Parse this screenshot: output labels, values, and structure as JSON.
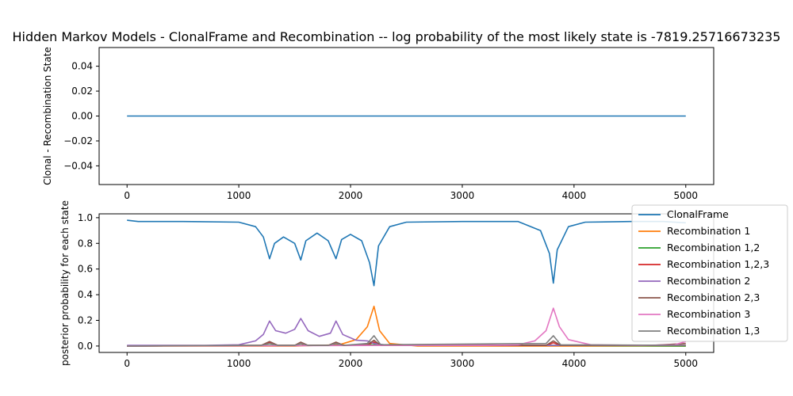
{
  "title": "Hidden Markov Models - ClonalFrame and Recombination -- log probability of the most likely state is  -7819.25716673235",
  "chart_data": [
    {
      "type": "line",
      "ylabel": "Clonal - Recombination State",
      "xlim": [
        -250,
        5250
      ],
      "ylim": [
        -0.055,
        0.055
      ],
      "xticks": [
        0,
        1000,
        2000,
        3000,
        4000,
        5000
      ],
      "yticks": [
        -0.04,
        -0.02,
        0.0,
        0.02,
        0.04
      ],
      "ytick_labels": [
        "−0.04",
        "−0.02",
        "0.00",
        "0.02",
        "0.04"
      ],
      "series": [
        {
          "color": "#1f77b4",
          "x": [
            0,
            5000
          ],
          "y": [
            0,
            0
          ]
        }
      ]
    },
    {
      "type": "line",
      "ylabel": "posterior probability for each state",
      "xlim": [
        -250,
        5250
      ],
      "ylim": [
        -0.05,
        1.03
      ],
      "xticks": [
        0,
        1000,
        2000,
        3000,
        4000,
        5000
      ],
      "yticks": [
        0.0,
        0.2,
        0.4,
        0.6,
        0.8,
        1.0
      ],
      "ytick_labels": [
        "0.0",
        "0.2",
        "0.4",
        "0.6",
        "0.8",
        "1.0"
      ],
      "legend_position": "right",
      "series": [
        {
          "name": "ClonalFrame",
          "color": "#1f77b4",
          "x": [
            0,
            100,
            500,
            1000,
            1150,
            1220,
            1275,
            1320,
            1400,
            1500,
            1555,
            1600,
            1700,
            1800,
            1870,
            1920,
            2000,
            2100,
            2170,
            2210,
            2250,
            2350,
            2500,
            3000,
            3500,
            3700,
            3780,
            3815,
            3850,
            3950,
            4100,
            4500,
            4800,
            5000
          ],
          "y": [
            0.98,
            0.97,
            0.97,
            0.965,
            0.93,
            0.85,
            0.68,
            0.8,
            0.85,
            0.8,
            0.67,
            0.82,
            0.88,
            0.82,
            0.68,
            0.83,
            0.87,
            0.82,
            0.65,
            0.47,
            0.78,
            0.93,
            0.965,
            0.97,
            0.97,
            0.9,
            0.72,
            0.49,
            0.75,
            0.93,
            0.965,
            0.97,
            0.97,
            0.96
          ]
        },
        {
          "name": "Recombination 1",
          "color": "#ff7f0e",
          "x": [
            0,
            1500,
            1900,
            2050,
            2150,
            2210,
            2260,
            2350,
            2600,
            5000
          ],
          "y": [
            0.0,
            0.0,
            0.01,
            0.05,
            0.15,
            0.31,
            0.12,
            0.02,
            0.0,
            0.0
          ]
        },
        {
          "name": "Recombination 1,2",
          "color": "#2ca02c",
          "x": [
            0,
            1275,
            1555,
            1870,
            2210,
            3815,
            5000
          ],
          "y": [
            0.0,
            0.005,
            0.005,
            0.005,
            0.01,
            0.005,
            0.0
          ]
        },
        {
          "name": "Recombination 1,2,3",
          "color": "#d62728",
          "x": [
            0,
            1200,
            1275,
            1350,
            1500,
            1555,
            1600,
            1800,
            1870,
            1950,
            2150,
            2210,
            2270,
            3750,
            3815,
            3880,
            5000
          ],
          "y": [
            0.0,
            0.005,
            0.025,
            0.005,
            0.005,
            0.02,
            0.005,
            0.005,
            0.02,
            0.005,
            0.01,
            0.03,
            0.005,
            0.005,
            0.025,
            0.005,
            0.005
          ]
        },
        {
          "name": "Recombination 2",
          "color": "#9467bd",
          "x": [
            0,
            700,
            1000,
            1150,
            1220,
            1275,
            1330,
            1420,
            1500,
            1555,
            1620,
            1720,
            1820,
            1870,
            1930,
            2050,
            2150,
            2210,
            2300,
            2500,
            3000,
            5000
          ],
          "y": [
            0.005,
            0.005,
            0.01,
            0.04,
            0.09,
            0.195,
            0.12,
            0.1,
            0.13,
            0.215,
            0.12,
            0.075,
            0.1,
            0.195,
            0.09,
            0.045,
            0.04,
            0.02,
            0.01,
            0.005,
            0.005,
            0.005
          ]
        },
        {
          "name": "Recombination 2,3",
          "color": "#8c564b",
          "x": [
            0,
            1200,
            1275,
            1350,
            1500,
            1555,
            1620,
            1800,
            1870,
            1940,
            2150,
            2210,
            2270,
            3750,
            3815,
            3880,
            4700,
            5000
          ],
          "y": [
            0.0,
            0.005,
            0.035,
            0.005,
            0.005,
            0.03,
            0.005,
            0.005,
            0.03,
            0.005,
            0.01,
            0.045,
            0.005,
            0.005,
            0.04,
            0.005,
            0.005,
            0.02
          ]
        },
        {
          "name": "Recombination 3",
          "color": "#e377c2",
          "x": [
            0,
            2500,
            3200,
            3500,
            3650,
            3750,
            3815,
            3870,
            3950,
            4150,
            4600,
            4900,
            5000
          ],
          "y": [
            0.0,
            0.005,
            0.005,
            0.01,
            0.04,
            0.12,
            0.295,
            0.15,
            0.05,
            0.01,
            0.005,
            0.01,
            0.035
          ]
        },
        {
          "name": "Recombination 1,3",
          "color": "#7f7f7f",
          "x": [
            0,
            1200,
            1275,
            1350,
            1500,
            1555,
            1620,
            1800,
            1870,
            1940,
            2150,
            2210,
            2270,
            3750,
            3815,
            3880,
            5000
          ],
          "y": [
            0.0,
            0.005,
            0.02,
            0.005,
            0.005,
            0.02,
            0.005,
            0.005,
            0.02,
            0.005,
            0.02,
            0.08,
            0.01,
            0.02,
            0.08,
            0.01,
            0.005
          ]
        }
      ]
    }
  ]
}
